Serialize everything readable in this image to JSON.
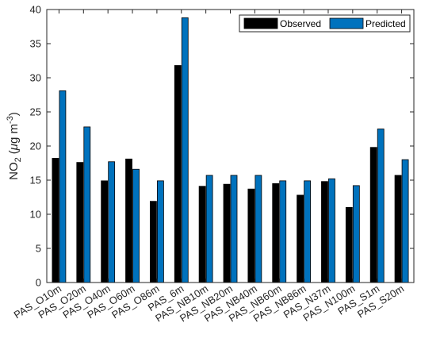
{
  "chart_data": {
    "type": "bar",
    "categories": [
      "PAS_O10m",
      "PAS_O20m",
      "PAS_O40m",
      "PAS_O60m",
      "PAS_O86m",
      "PAS_6m",
      "PAS_NB10m",
      "PAS_NB20m",
      "PAS_NB40m",
      "PAS_NB60m",
      "PAS_NB86m",
      "PAS_N37m",
      "PAS_N100m",
      "PAS_S1m",
      "PAS_S20m"
    ],
    "series": [
      {
        "name": "Observed",
        "color": "#000000",
        "values": [
          18.2,
          17.6,
          14.9,
          18.1,
          11.9,
          31.8,
          14.1,
          14.4,
          13.7,
          14.5,
          12.8,
          14.8,
          11.0,
          19.8,
          15.7
        ]
      },
      {
        "name": "Predicted",
        "color": "#0072BD",
        "values": [
          28.1,
          22.8,
          17.7,
          16.6,
          14.9,
          38.8,
          15.7,
          15.7,
          15.7,
          14.9,
          14.9,
          15.2,
          14.2,
          22.5,
          18.0
        ]
      }
    ],
    "ylabel": "NO₂ (μg m⁻³)",
    "ylabel_parts": {
      "base": "NO",
      "sub": "2",
      "paren": "(",
      "mu": "μ",
      "unit": "g m",
      "sup": "-3",
      "close": ")"
    },
    "ylim": [
      0,
      40
    ],
    "yticks": [
      0,
      5,
      10,
      15,
      20,
      25,
      30,
      35,
      40
    ],
    "grid": false,
    "legend": {
      "placement": "top-right",
      "orientation": "horizontal"
    }
  }
}
